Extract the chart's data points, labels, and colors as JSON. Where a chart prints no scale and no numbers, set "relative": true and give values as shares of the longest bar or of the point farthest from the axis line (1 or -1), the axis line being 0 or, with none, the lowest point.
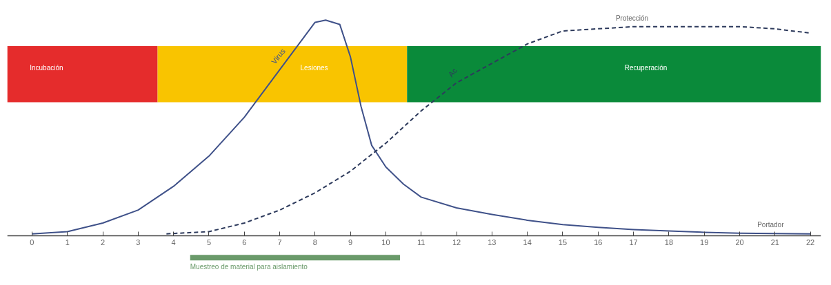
{
  "chart_data": {
    "type": "line",
    "relative": true,
    "xlim": [
      -0.7,
      22.3
    ],
    "xticks": [
      0,
      1,
      2,
      3,
      4,
      5,
      6,
      7,
      8,
      9,
      10,
      11,
      12,
      13,
      14,
      15,
      16,
      17,
      18,
      19,
      20,
      21,
      22
    ],
    "grid": false,
    "tick_labels": "x",
    "series": [
      {
        "name": "Virus",
        "color": "#3f5189",
        "line_style": "solid",
        "x": [
          0,
          1,
          2,
          3,
          4,
          5,
          6,
          7,
          7.5,
          8,
          8.3,
          8.7,
          9,
          9.3,
          9.6,
          10,
          10.5,
          11,
          12,
          13,
          14,
          15,
          16,
          17,
          18,
          19,
          20,
          22
        ],
        "values": [
          0.01,
          0.02,
          0.06,
          0.12,
          0.23,
          0.37,
          0.55,
          0.77,
          0.88,
          0.99,
          1.0,
          0.98,
          0.83,
          0.6,
          0.42,
          0.32,
          0.24,
          0.18,
          0.13,
          0.1,
          0.073,
          0.053,
          0.04,
          0.03,
          0.023,
          0.017,
          0.013,
          0.01
        ]
      },
      {
        "name": "Ac",
        "color": "#2d3a5c",
        "line_style": "dashed",
        "x": [
          3.8,
          5,
          6,
          7,
          8,
          9,
          10,
          11,
          12,
          13,
          14,
          15,
          16,
          17,
          18,
          20,
          21,
          22
        ],
        "values": [
          0.01,
          0.02,
          0.06,
          0.12,
          0.2,
          0.3,
          0.43,
          0.58,
          0.71,
          0.8,
          0.89,
          0.95,
          0.96,
          0.97,
          0.97,
          0.97,
          0.96,
          0.94
        ]
      },
      {
        "name": "Muestreo de material para aislamiento",
        "type": "line",
        "color": "#6a9a6a",
        "line_style": "solid",
        "x": [
          4.47,
          10.4
        ],
        "values": [
          -0.1,
          -0.1
        ]
      }
    ],
    "bands": [
      {
        "axis": "x",
        "from": -0.7,
        "to": 3.55,
        "label": "Incubación",
        "color": "#e52c2c"
      },
      {
        "axis": "x",
        "from": 3.55,
        "to": 10.6,
        "label": "Lesiones",
        "color": "#f9c400"
      },
      {
        "axis": "x",
        "from": 10.6,
        "to": 22.3,
        "label": "Recuperación",
        "color": "#0a8a3a"
      }
    ],
    "annotations": [
      {
        "text": "Protección",
        "x": 16.5,
        "y": 0.97
      },
      {
        "text": "Portador",
        "x": 20.5,
        "y": 0.013
      }
    ]
  }
}
